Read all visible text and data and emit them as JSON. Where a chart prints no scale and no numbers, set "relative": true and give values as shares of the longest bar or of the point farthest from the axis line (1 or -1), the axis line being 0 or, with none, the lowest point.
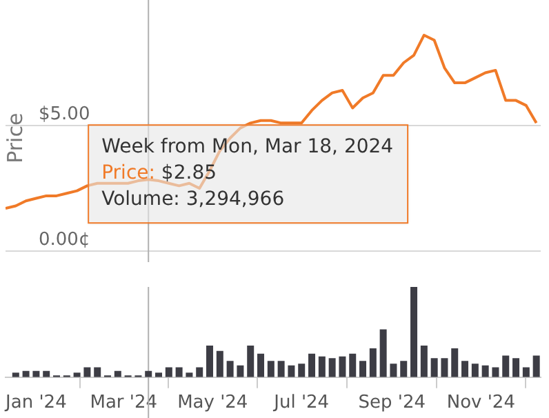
{
  "chart_data": [
    {
      "type": "line",
      "ylabel": "Price",
      "x": [
        "2023-12-11",
        "2023-12-18",
        "2023-12-25",
        "2024-01-01",
        "2024-01-08",
        "2024-01-15",
        "2024-01-22",
        "2024-01-29",
        "2024-02-05",
        "2024-02-12",
        "2024-02-19",
        "2024-02-26",
        "2024-03-04",
        "2024-03-11",
        "2024-03-18",
        "2024-03-25",
        "2024-04-01",
        "2024-04-08",
        "2024-04-15",
        "2024-04-22",
        "2024-04-29",
        "2024-05-06",
        "2024-05-13",
        "2024-05-20",
        "2024-05-27",
        "2024-06-03",
        "2024-06-10",
        "2024-06-17",
        "2024-06-24",
        "2024-07-01",
        "2024-07-08",
        "2024-07-15",
        "2024-07-22",
        "2024-07-29",
        "2024-08-05",
        "2024-08-12",
        "2024-08-19",
        "2024-08-26",
        "2024-09-02",
        "2024-09-09",
        "2024-09-16",
        "2024-09-23",
        "2024-09-30",
        "2024-10-07",
        "2024-10-14",
        "2024-10-21",
        "2024-10-28",
        "2024-11-04",
        "2024-11-11",
        "2024-11-18",
        "2024-11-25",
        "2024-12-02",
        "2024-12-09"
      ],
      "series": [
        {
          "color": "#f07a28",
          "values": [
            1.7,
            1.8,
            2.0,
            2.1,
            2.2,
            2.2,
            2.3,
            2.4,
            2.6,
            2.7,
            2.7,
            2.7,
            2.7,
            2.8,
            2.85,
            2.8,
            2.7,
            2.6,
            2.7,
            2.5,
            3.2,
            4.0,
            4.5,
            4.9,
            5.1,
            5.2,
            5.2,
            5.1,
            5.1,
            5.1,
            5.6,
            6.0,
            6.3,
            6.4,
            5.7,
            6.1,
            6.3,
            7.0,
            7.0,
            7.5,
            7.8,
            8.6,
            8.4,
            7.3,
            6.7,
            6.7,
            6.9,
            7.1,
            7.2,
            6.0,
            6.0,
            5.8,
            5.1
          ]
        }
      ],
      "xlim": [
        "2023-12-11",
        "2024-12-12"
      ],
      "ylim": [
        0,
        10
      ],
      "yticks": [
        {
          "value": 0,
          "label": "0.00¢"
        },
        {
          "value": 5,
          "label": "$5.00"
        }
      ],
      "grid": "y",
      "tick_labels": "y",
      "marker": "none",
      "ref_lines": [
        {
          "axis": "x",
          "value": "2024-03-18",
          "color": "#b0b0b0"
        }
      ],
      "annotations": [
        {
          "text": "Week from Mon, Mar 18, 2024",
          "x": "2024-03-18",
          "y": 2.85
        },
        {
          "text": "Price: $2.85",
          "x": "2024-03-18",
          "y": 2.85
        },
        {
          "text": "Volume: 3,294,966",
          "x": "2024-03-18",
          "y": 2.85
        }
      ]
    },
    {
      "type": "bar",
      "relative": true,
      "x": [
        "2023-12-18",
        "2023-12-25",
        "2024-01-01",
        "2024-01-08",
        "2024-01-15",
        "2024-01-22",
        "2024-01-29",
        "2024-02-05",
        "2024-02-12",
        "2024-02-19",
        "2024-02-26",
        "2024-03-04",
        "2024-03-11",
        "2024-03-18",
        "2024-03-25",
        "2024-04-01",
        "2024-04-08",
        "2024-04-15",
        "2024-04-22",
        "2024-04-29",
        "2024-05-06",
        "2024-05-13",
        "2024-05-20",
        "2024-05-27",
        "2024-06-03",
        "2024-06-10",
        "2024-06-17",
        "2024-06-24",
        "2024-07-01",
        "2024-07-08",
        "2024-07-15",
        "2024-07-22",
        "2024-07-29",
        "2024-08-05",
        "2024-08-12",
        "2024-08-19",
        "2024-08-26",
        "2024-09-02",
        "2024-09-09",
        "2024-09-16",
        "2024-09-23",
        "2024-09-30",
        "2024-10-07",
        "2024-10-14",
        "2024-10-21",
        "2024-10-28",
        "2024-11-04",
        "2024-11-11",
        "2024-11-18",
        "2024-11-25",
        "2024-12-02",
        "2024-12-09"
      ],
      "series": [
        {
          "color": "#3d3d45",
          "values": [
            0.05,
            0.07,
            0.07,
            0.07,
            0.02,
            0.02,
            0.05,
            0.11,
            0.11,
            0.02,
            0.07,
            0.02,
            0.02,
            0.07,
            0.05,
            0.11,
            0.11,
            0.05,
            0.11,
            0.35,
            0.29,
            0.18,
            0.13,
            0.35,
            0.26,
            0.18,
            0.18,
            0.13,
            0.15,
            0.26,
            0.23,
            0.21,
            0.23,
            0.26,
            0.18,
            0.32,
            0.53,
            0.15,
            0.18,
            1,
            0.35,
            0.21,
            0.21,
            0.32,
            0.18,
            0.15,
            0.13,
            0.11,
            0.24,
            0.21,
            0.11,
            0.24
          ]
        }
      ],
      "xlim": [
        "2023-12-11",
        "2024-12-12"
      ],
      "xticks": [
        {
          "value": "2024-01-01",
          "label": "Jan '24"
        },
        {
          "value": "2024-03-01",
          "label": "Mar '24"
        },
        {
          "value": "2024-05-01",
          "label": "May '24"
        },
        {
          "value": "2024-07-01",
          "label": "Jul '24"
        },
        {
          "value": "2024-09-01",
          "label": "Sep '24"
        },
        {
          "value": "2024-11-01",
          "label": "Nov '24"
        }
      ],
      "tick_labels": "x",
      "ref_lines": [
        {
          "axis": "x",
          "value": "2024-03-18",
          "color": "#b0b0b0"
        }
      ]
    }
  ]
}
